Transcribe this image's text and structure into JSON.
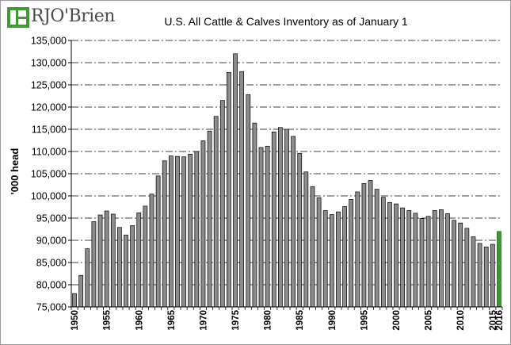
{
  "brand": {
    "logo_text": "RJO'Brien",
    "logo_mark_color": "#3f9a34"
  },
  "chart_data": {
    "type": "bar",
    "title": "U.S. All Cattle & Calves Inventory as of January 1",
    "xlabel": "",
    "ylabel": "'000 head",
    "ylim": [
      75000,
      135000
    ],
    "y_ticks": [
      75000,
      80000,
      85000,
      90000,
      95000,
      100000,
      105000,
      110000,
      115000,
      120000,
      125000,
      130000,
      135000
    ],
    "y_tick_labels": [
      "75,000",
      "80,000",
      "85,000",
      "90,000",
      "95,000",
      "100,000",
      "105,000",
      "110,000",
      "115,000",
      "120,000",
      "125,000",
      "130,000",
      "135,000"
    ],
    "x_tick_labels": [
      "1950",
      "1955",
      "1960",
      "1965",
      "1970",
      "1975",
      "1980",
      "1985",
      "1990",
      "1995",
      "2000",
      "2005",
      "2010",
      "2015",
      "2016"
    ],
    "gridlines": "horizontal dash-dot",
    "bar_color": "#8c8c8c",
    "highlight_color": "#3c9a2e",
    "highlight_category": "2016",
    "categories": [
      "1950",
      "1951",
      "1952",
      "1953",
      "1954",
      "1955",
      "1956",
      "1957",
      "1958",
      "1959",
      "1960",
      "1961",
      "1962",
      "1963",
      "1964",
      "1965",
      "1966",
      "1967",
      "1968",
      "1969",
      "1970",
      "1971",
      "1972",
      "1973",
      "1974",
      "1975",
      "1976",
      "1977",
      "1978",
      "1979",
      "1980",
      "1981",
      "1982",
      "1983",
      "1984",
      "1985",
      "1986",
      "1987",
      "1988",
      "1989",
      "1990",
      "1991",
      "1992",
      "1993",
      "1994",
      "1995",
      "1996",
      "1997",
      "1998",
      "1999",
      "2000",
      "2001",
      "2002",
      "2003",
      "2004",
      "2005",
      "2006",
      "2007",
      "2008",
      "2009",
      "2010",
      "2011",
      "2012",
      "2013",
      "2014",
      "2015",
      "2016"
    ],
    "values": [
      78000,
      82100,
      88100,
      94200,
      95700,
      96600,
      95900,
      92900,
      91200,
      93300,
      96200,
      97700,
      100400,
      104500,
      107900,
      109000,
      108900,
      108800,
      109400,
      110000,
      112400,
      114600,
      117900,
      121500,
      127800,
      132000,
      128000,
      122800,
      116400,
      110900,
      111200,
      114400,
      115400,
      115000,
      113400,
      109600,
      105400,
      102100,
      99600,
      96700,
      95800,
      96400,
      97600,
      99200,
      100900,
      102800,
      103500,
      101500,
      99700,
      98500,
      98200,
      97300,
      96700,
      96100,
      94900,
      95400,
      96700,
      96900,
      96000,
      94500,
      93900,
      92700,
      90800,
      89300,
      88500,
      89100,
      92000
    ]
  }
}
